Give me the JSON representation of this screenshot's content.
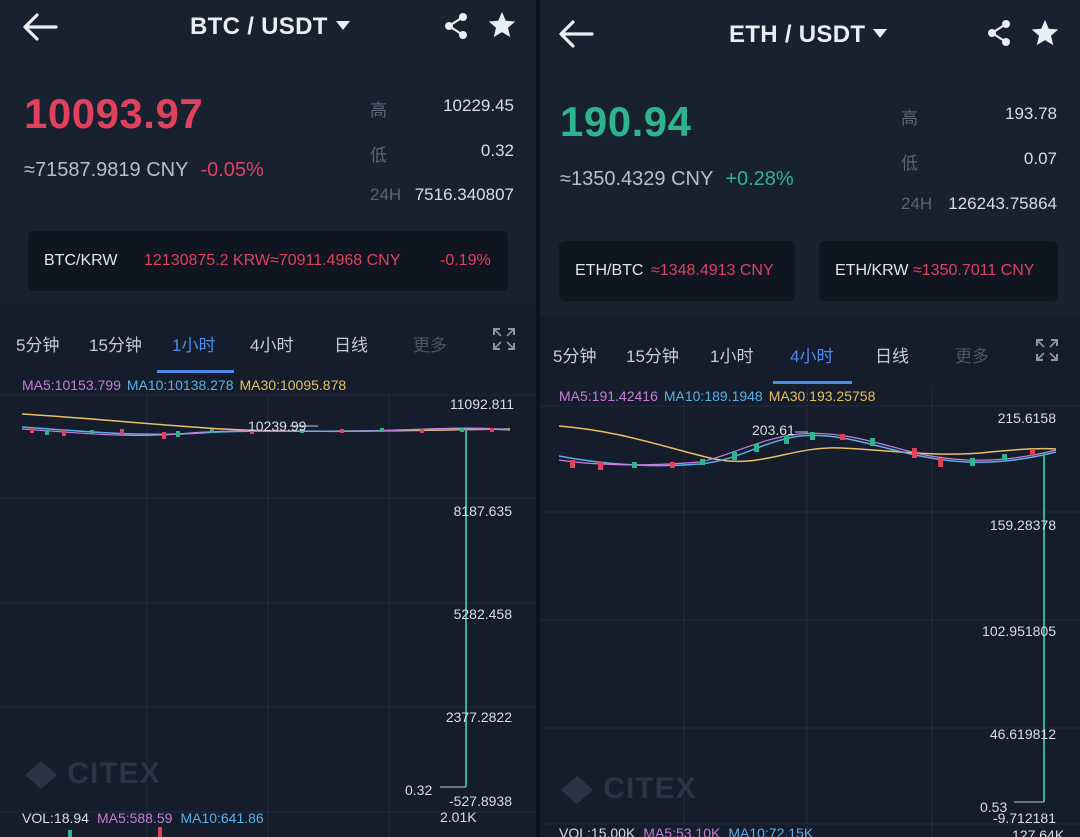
{
  "colors": {
    "background": "#151d2c",
    "up": "#2fb48f",
    "down": "#e0415d",
    "accent": "#4e8bea",
    "ma5": "#c97ed8",
    "ma10": "#5ab0e6",
    "ma30": "#e8c060"
  },
  "left": {
    "pair": "BTC / USDT",
    "price": "10093.97",
    "price_color": "#e0415d",
    "cny": "≈71587.9819 CNY",
    "change": "-0.05%",
    "change_color": "#e0415d",
    "stats": [
      {
        "label": "高",
        "value": "10229.45"
      },
      {
        "label": "低",
        "value": "0.32"
      },
      {
        "label": "24H",
        "value": "7516.340807"
      }
    ],
    "cross": [
      {
        "pair": "BTC/KRW",
        "value": "12130875.2 KRW≈70911.4968 CNY",
        "change": "-0.19%"
      }
    ],
    "tabs": [
      "5分钟",
      "15分钟",
      "1小时",
      "4小时",
      "日线",
      "更多"
    ],
    "active_tab": 2,
    "ma": {
      "ma5": "MA5:10153.799",
      "ma10": "MA10:10138.278",
      "ma30": "MA30:10095.878"
    },
    "axis": [
      "11092.811",
      "8187.635",
      "5282.458",
      "2377.2822",
      "-527.8938"
    ],
    "high_marker": "10239.99",
    "low_marker": "0.32",
    "vol": {
      "vol": "VOL:18.94",
      "ma5": "MA5:588.59",
      "ma10": "MA10:641.86",
      "axis": "2.01K"
    },
    "watermark": "CITEX"
  },
  "right": {
    "pair": "ETH / USDT",
    "price": "190.94",
    "price_color": "#2fb48f",
    "cny": "≈1350.4329 CNY",
    "change": "+0.28%",
    "change_color": "#2fb48f",
    "stats": [
      {
        "label": "高",
        "value": "193.78"
      },
      {
        "label": "低",
        "value": "0.07"
      },
      {
        "label": "24H",
        "value": "126243.75864"
      }
    ],
    "cross": [
      {
        "pair": "ETH/BTC",
        "value": "≈1348.4913 CNY"
      },
      {
        "pair": "ETH/KRW",
        "value": "≈1350.7011 CNY"
      }
    ],
    "tabs": [
      "5分钟",
      "15分钟",
      "1小时",
      "4小时",
      "日线",
      "更多"
    ],
    "active_tab": 3,
    "ma": {
      "ma5": "MA5:191.42416",
      "ma10": "MA10:189.1948",
      "ma30": "MA30:193.25758"
    },
    "axis": [
      "215.6158",
      "159.28378",
      "102.951805",
      "46.619812",
      "-9.712181"
    ],
    "high_marker": "203.61",
    "low_marker": "0.53",
    "vol": {
      "vol": "VOL:15.00K",
      "ma5": "MA5:53.10K",
      "ma10": "MA10:72.15K",
      "axis": "127.64K"
    },
    "watermark": "CITEX"
  }
}
